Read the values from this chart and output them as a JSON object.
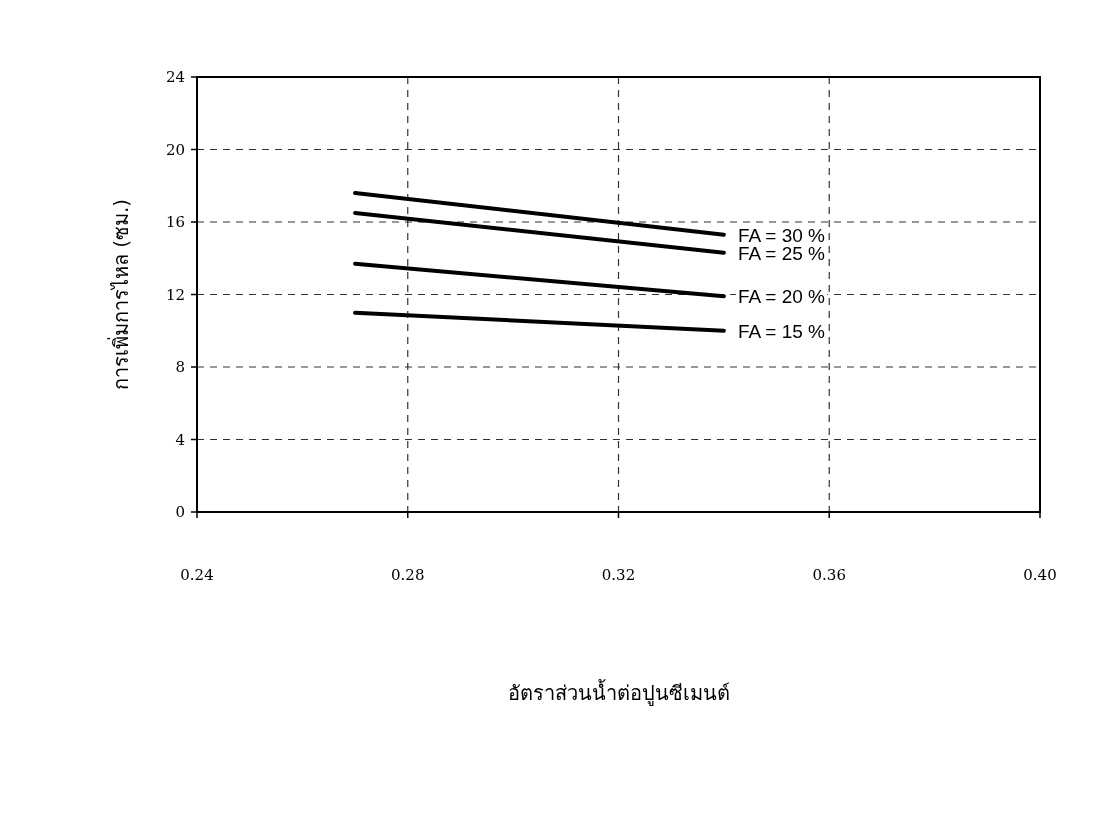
{
  "chart_data": {
    "type": "line",
    "xlabel": "อัตราส่วนน้ำต่อปูนซีเมนต์",
    "ylabel": "การเพิ่มการไหล (ซม.)",
    "xlim": [
      0.24,
      0.4
    ],
    "xticks": [
      0.24,
      0.28,
      0.32,
      0.36,
      {
        "value": 0.4,
        "label": "0.40"
      }
    ],
    "ylim": [
      0,
      24
    ],
    "yticks": [
      0,
      4,
      8,
      12,
      16,
      20,
      24
    ],
    "grid": true,
    "marker": "none",
    "line_style": "solid",
    "x": [
      0.27,
      0.34
    ],
    "series": [
      {
        "name": "FA = 30 %",
        "color": "#000000",
        "values": [
          17.6,
          15.3
        ]
      },
      {
        "name": "FA = 25 %",
        "color": "#000000",
        "values": [
          16.5,
          14.3
        ]
      },
      {
        "name": "FA = 20 %",
        "color": "#000000",
        "values": [
          13.7,
          11.9
        ]
      },
      {
        "name": "FA = 15 %",
        "color": "#000000",
        "values": [
          11.0,
          10.0
        ]
      }
    ]
  }
}
